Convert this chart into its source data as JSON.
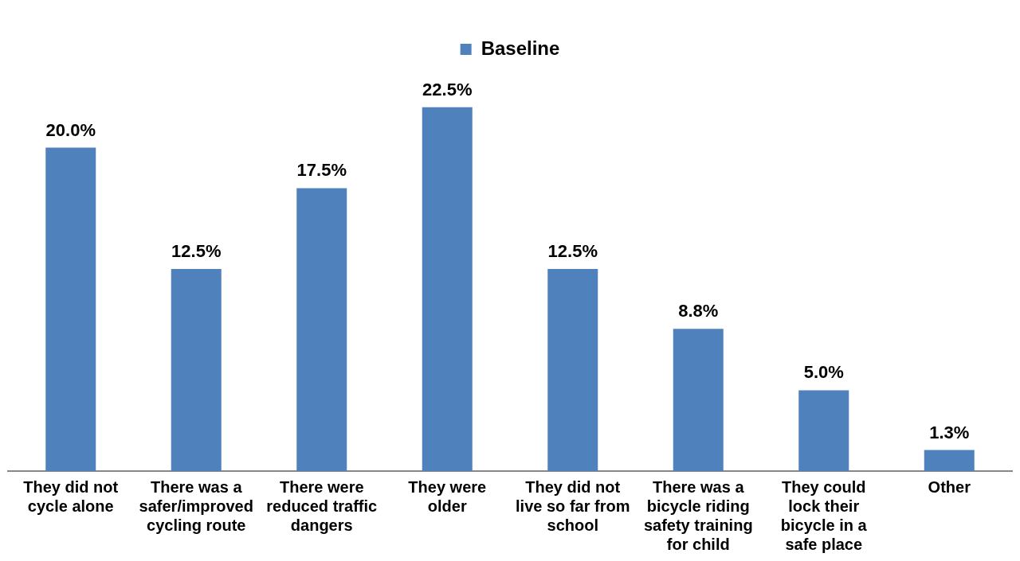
{
  "chart_data": {
    "type": "bar",
    "categories": [
      "They did not cycle alone",
      "There was a safer/improved cycling route",
      "There were reduced traffic dangers",
      "They were older",
      "They did not live so far from school",
      "There was a bicycle riding safety training for child",
      "They could lock their bicycle in a safe place",
      "Other"
    ],
    "series": [
      {
        "name": "Baseline",
        "color": "#4f81bd",
        "values": [
          20.0,
          12.5,
          17.5,
          22.5,
          12.5,
          8.8,
          5.0,
          1.3
        ],
        "value_labels": [
          "20.0%",
          "12.5%",
          "17.5%",
          "22.5%",
          "12.5%",
          "8.8%",
          "5.0%",
          "1.3%"
        ]
      }
    ],
    "legend": "top"
  }
}
